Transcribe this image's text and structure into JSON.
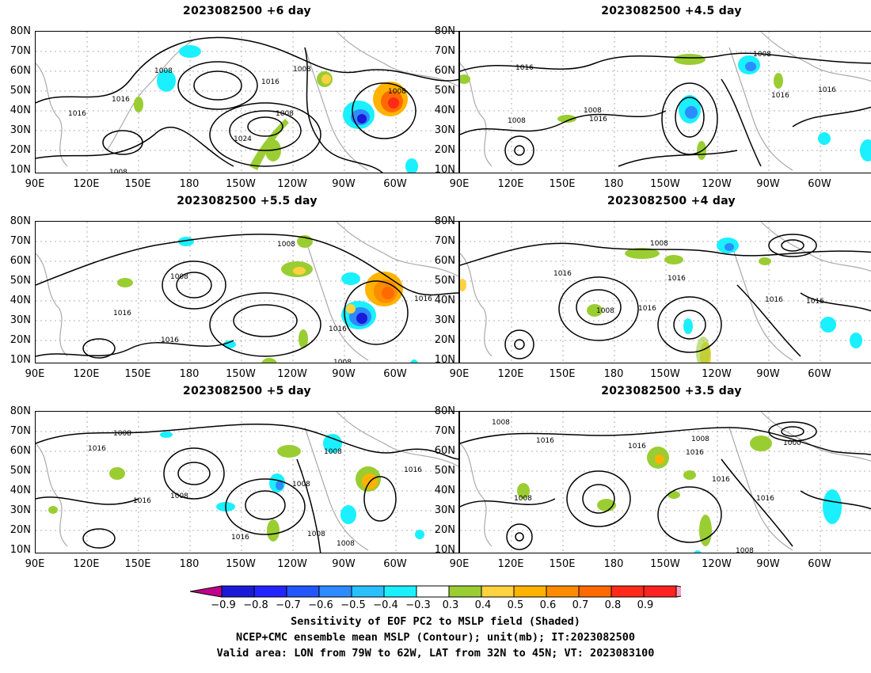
{
  "panels": [
    {
      "title": "2023082500  +6 day"
    },
    {
      "title": "2023082500  +4.5 day"
    },
    {
      "title": "2023082500  +5.5 day"
    },
    {
      "title": "2023082500  +4 day"
    },
    {
      "title": "2023082500  +5 day"
    },
    {
      "title": "2023082500  +3.5 day"
    }
  ],
  "axes": {
    "y_labels": [
      "80N",
      "70N",
      "60N",
      "50N",
      "40N",
      "30N",
      "20N",
      "10N"
    ],
    "x_labels": [
      "90E",
      "120E",
      "150E",
      "180",
      "150W",
      "120W",
      "90W",
      "60W"
    ]
  },
  "contour_labels": {
    "p0": [
      "1008",
      "1016",
      "1016",
      "1008",
      "1016",
      "1008",
      "1008",
      "1024",
      "1008"
    ],
    "p1": [
      "1016",
      "1008",
      "1008",
      "1016",
      "1016",
      "1016",
      "1008"
    ],
    "p2": [
      "1008",
      "1008",
      "1016",
      "1016",
      "1016",
      "1016",
      "1008",
      "1016"
    ],
    "p3": [
      "1008",
      "1016",
      "1016",
      "1008",
      "1016",
      "1016",
      "1016",
      "1008",
      "1008"
    ],
    "p4": [
      "1008",
      "1016",
      "1016",
      "1008",
      "1008",
      "1008",
      "1016",
      "1016",
      "1008",
      "1008"
    ],
    "p5": [
      "1008",
      "1016",
      "1008",
      "1016",
      "1016",
      "1000",
      "1016",
      "1016",
      "1008",
      "1008"
    ]
  },
  "colorbar": {
    "colors": [
      "#c0008a",
      "#1a1ad8",
      "#2424ff",
      "#2256ff",
      "#2d8bff",
      "#29c0ff",
      "#1af0ff",
      "#ffffff",
      "#9acd32",
      "#ffd23f",
      "#ffb300",
      "#ff8c00",
      "#ff6a00",
      "#ff2a1a",
      "#ff2222",
      "#ff9ebe"
    ],
    "labels": [
      "−0.9",
      "−0.8",
      "−0.7",
      "−0.6",
      "−0.5",
      "−0.4",
      "−0.3",
      "0.3",
      "0.4",
      "0.5",
      "0.6",
      "0.7",
      "0.8",
      "0.9"
    ]
  },
  "caption": {
    "line1": "Sensitivity of EOF PC2 to MSLP field (Shaded)",
    "line2": "NCEP+CMC ensemble mean MSLP (Contour); unit(mb); IT:2023082500",
    "line3": "Valid area: LON from 79W to 62W, LAT from 32N to 45N; VT: 2023083100"
  }
}
